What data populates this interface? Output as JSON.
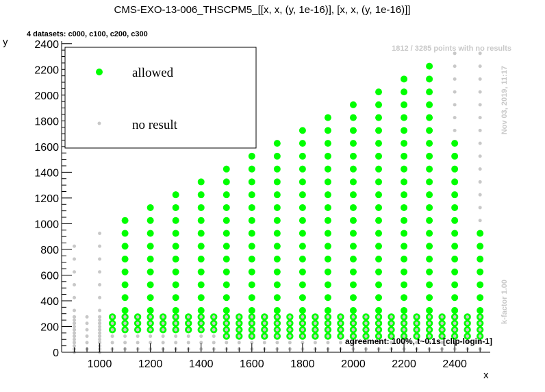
{
  "chart_data": {
    "type": "scatter",
    "title": "CMS-EXO-13-006_THSCPM5_[[x, x, (y, 1e-16)], [x, x, (y, 1e-16)]]",
    "subtitle": "4 datasets: c000, c100, c200, c300",
    "xlabel": "x",
    "ylabel": "y",
    "xlim": [
      850,
      2540
    ],
    "ylim": [
      0,
      2420
    ],
    "x_ticks": [
      1000,
      1200,
      1400,
      1600,
      1800,
      2000,
      2200,
      2400
    ],
    "y_ticks": [
      0,
      200,
      400,
      600,
      800,
      1000,
      1200,
      1400,
      1600,
      1800,
      2000,
      2200,
      2400
    ],
    "grid": false,
    "legend_position": "top-left",
    "legend": [
      {
        "label": "allowed",
        "color": "#00ff00",
        "marker": "large-dot"
      },
      {
        "label": "no result",
        "color": "#c8c8c8",
        "marker": "small-dot"
      }
    ],
    "annotations": {
      "points_note": "1812 / 3285 points with no results",
      "date_note": "Nov 03, 2019, 11:17",
      "kfactor_note": "k-factor 1.00",
      "agreement": "agreement: 100%, t~0.1s [clip-login-1]"
    },
    "x_columns_main": [
      1100,
      1200,
      1300,
      1400,
      1500,
      1600,
      1700,
      1800,
      1900,
      2000,
      2100,
      2200,
      2300
    ],
    "x_columns_offset": [
      1050,
      1150,
      1250,
      1350,
      1450,
      1550,
      1650,
      1750,
      1850,
      1950,
      2050,
      2150,
      2250,
      2350,
      2450
    ],
    "series": [
      {
        "name": "allowed",
        "color": "#00ff00",
        "main_grid": {
          "y_start": 325,
          "y_step": 100,
          "y_max_by_x": {
            "1100": 1025,
            "1200": 1125,
            "1300": 1225,
            "1400": 1325,
            "1500": 1425,
            "1600": 1525,
            "1700": 1625,
            "1800": 1725,
            "1900": 1825,
            "2000": 1925,
            "2100": 2025,
            "2200": 2125,
            "2300": 2225,
            "2400": 1625,
            "2500": 925
          }
        },
        "low_rows_y": [
          175,
          225,
          275
        ],
        "low_rows_offset_y": [
          125,
          175,
          225,
          275
        ]
      },
      {
        "name": "no result",
        "color": "#c8c8c8",
        "columns": [
          {
            "x": 900,
            "y_max": 825
          },
          {
            "x": 1000,
            "y_max": 925
          },
          {
            "x": 2400,
            "y_min": 1725,
            "y_max": 2325
          },
          {
            "x": 2500,
            "y_min": 1025,
            "y_max": 2325
          }
        ],
        "low_region": {
          "x_from": 900,
          "x_to": 2500,
          "y_from": 0,
          "y_to": 275
        }
      }
    ]
  }
}
